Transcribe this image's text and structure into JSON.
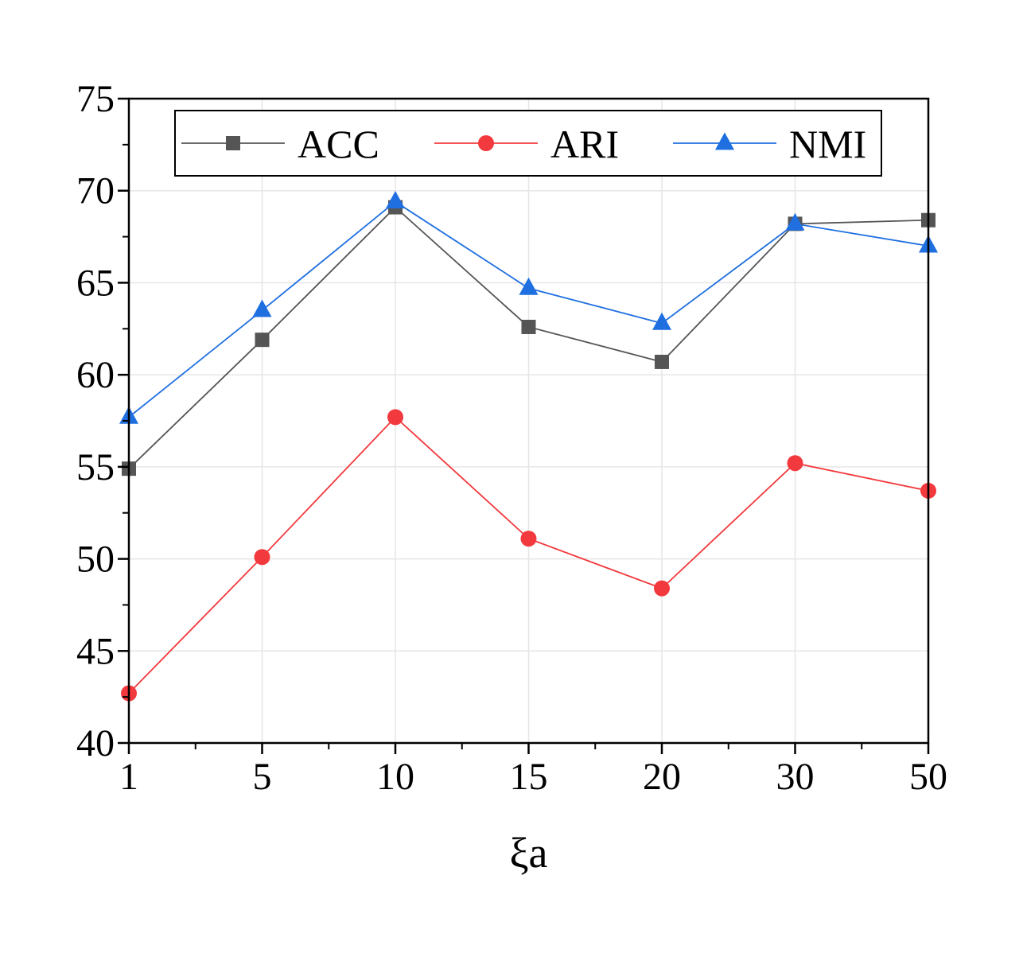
{
  "chart_data": {
    "type": "line",
    "categories": [
      "1",
      "5",
      "10",
      "15",
      "20",
      "30",
      "50"
    ],
    "series": [
      {
        "name": "ACC",
        "values": [
          54.9,
          61.9,
          69.1,
          62.6,
          60.7,
          68.2,
          68.4
        ],
        "color": "#555555",
        "marker": "square"
      },
      {
        "name": "ARI",
        "values": [
          42.7,
          50.1,
          57.7,
          51.1,
          48.4,
          55.2,
          53.7
        ],
        "color": "#f2393d",
        "marker": "circle"
      },
      {
        "name": "NMI",
        "values": [
          57.7,
          63.5,
          69.4,
          64.7,
          62.8,
          68.2,
          67.0
        ],
        "color": "#1f6fe0",
        "marker": "triangle"
      }
    ],
    "xlabel": "ξa",
    "ylabel": "",
    "ylim": [
      40,
      75
    ],
    "yticks": [
      40,
      45,
      50,
      55,
      60,
      65,
      70,
      75
    ],
    "grid": true,
    "legend_position": "top"
  }
}
